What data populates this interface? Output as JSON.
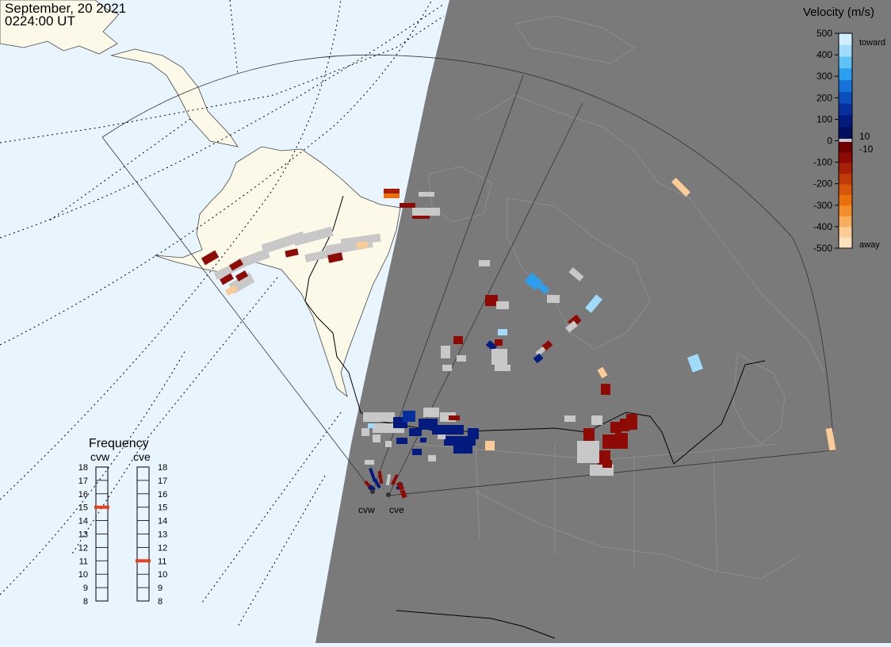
{
  "header": {
    "date": "September, 20 2021",
    "time": "0224:00 UT"
  },
  "colors": {
    "ocean": "#e8f5fe",
    "land_day": "#fcf9e8",
    "night": "#7a7a7a",
    "grey_scatter": "#c8c8c8",
    "freq_marker": "#e8401c"
  },
  "velocity_scale": {
    "title": "Velocity (m/s)",
    "tick_labels": [
      "500",
      "400",
      "300",
      "200",
      "100",
      "0",
      "-100",
      "-200",
      "-300",
      "-400",
      "-500"
    ],
    "label_toward": "toward",
    "label_away": "away",
    "label_pos_threshold": "10",
    "label_neg_threshold": "-10",
    "colors_toward": [
      "#cfeefe",
      "#9fdcfb",
      "#5ec2f6",
      "#2a9ff0",
      "#1673dc",
      "#0a4fbe",
      "#062f9e",
      "#031a7e",
      "#020f5e"
    ],
    "colors_away": [
      "#6e0000",
      "#8e0a04",
      "#a81e06",
      "#c23a08",
      "#d8550a",
      "#ea700c",
      "#f38e2a",
      "#f8ad5c",
      "#fbcc96",
      "#fde0bc"
    ]
  },
  "frequency_panel": {
    "title": "Frequency",
    "radars": [
      {
        "code": "cvw",
        "value_mhz": 15
      },
      {
        "code": "cve",
        "value_mhz": 11
      }
    ],
    "scale_labels": [
      "18",
      "17",
      "16",
      "15",
      "14",
      "13",
      "12",
      "11",
      "10",
      "9",
      "8"
    ]
  },
  "radar_sites": [
    {
      "code": "cvw"
    },
    {
      "code": "cve"
    }
  ]
}
